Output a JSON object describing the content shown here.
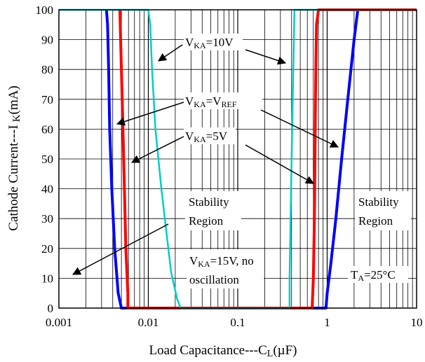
{
  "chart_data": {
    "type": "line",
    "title": "",
    "xlabel_parts": {
      "main": "Load Capacitance---C",
      "sub": "L",
      "tail": "(µF)"
    },
    "ylabel_parts": {
      "main": "Cathode Current---I",
      "sub": "K",
      "tail": "(mA)"
    },
    "x_scale": "log",
    "xlim": [
      0.001,
      10
    ],
    "ylim": [
      0,
      100
    ],
    "grid": true,
    "x_ticks": [
      0.001,
      0.01,
      0.1,
      1,
      10
    ],
    "x_tick_labels": [
      "0.001",
      "0.01",
      "0.1",
      "1",
      "10"
    ],
    "y_ticks": [
      0,
      10,
      20,
      30,
      40,
      50,
      60,
      70,
      80,
      90,
      100
    ],
    "y_tick_labels": [
      "0",
      "10",
      "20",
      "30",
      "40",
      "50",
      "60",
      "70",
      "80",
      "90",
      "100"
    ],
    "series": [
      {
        "color": "#0000ff",
        "x": [
          0.0034,
          0.0035,
          0.0036,
          0.0037,
          0.0039,
          0.0042,
          0.0046,
          0.005,
          0.005,
          0.5,
          0.97,
          1.0,
          1.1,
          1.25,
          1.45,
          1.7,
          2.0,
          2.2,
          2.2,
          10
        ],
        "y": [
          100,
          95,
          80,
          60,
          40,
          20,
          5,
          0,
          0,
          0,
          0,
          5,
          15,
          30,
          50,
          70,
          90,
          100,
          100,
          100
        ]
      },
      {
        "color": "#ff0000",
        "x": [
          0.0048,
          0.005,
          0.0052,
          0.0054,
          0.0056,
          0.0059,
          0.0059,
          0.45,
          0.68,
          0.7,
          0.72,
          0.73,
          0.74,
          0.75,
          0.76,
          0.8,
          10
        ],
        "y": [
          100,
          80,
          60,
          40,
          20,
          5,
          0,
          0,
          0,
          10,
          30,
          50,
          70,
          85,
          95,
          100,
          100
        ]
      },
      {
        "color": "#00cccc",
        "x": [
          0.001,
          0.01,
          0.0105,
          0.011,
          0.012,
          0.014,
          0.016,
          0.018,
          0.021,
          0.023,
          0.023,
          0.36,
          0.38,
          0.38,
          0.4,
          0.43,
          10
        ],
        "y": [
          100,
          100,
          95,
          80,
          60,
          40,
          25,
          12,
          3,
          0,
          0,
          0,
          0,
          10,
          50,
          100,
          100
        ]
      }
    ],
    "annotations": [
      {
        "id": "vka10",
        "main": "V",
        "sub": "KA",
        "tail": "=10V"
      },
      {
        "id": "vkaref",
        "main": "V",
        "sub": "KA",
        "mid": "=V",
        "sub2": "REF",
        "tail": ""
      },
      {
        "id": "vka5",
        "main": "V",
        "sub": "KA",
        "tail": "=5V"
      },
      {
        "id": "stab1a",
        "text": "Stability"
      },
      {
        "id": "stab1b",
        "text": "Region"
      },
      {
        "id": "stab2a",
        "text": "Stability"
      },
      {
        "id": "stab2b",
        "text": "Region"
      },
      {
        "id": "vka15a",
        "main": "V",
        "sub": "KA",
        "tail": "=15V, no"
      },
      {
        "id": "vka15b",
        "text": "oscillation"
      },
      {
        "id": "ta",
        "main": "T",
        "sub": "A",
        "tail": "=25°C"
      }
    ]
  }
}
